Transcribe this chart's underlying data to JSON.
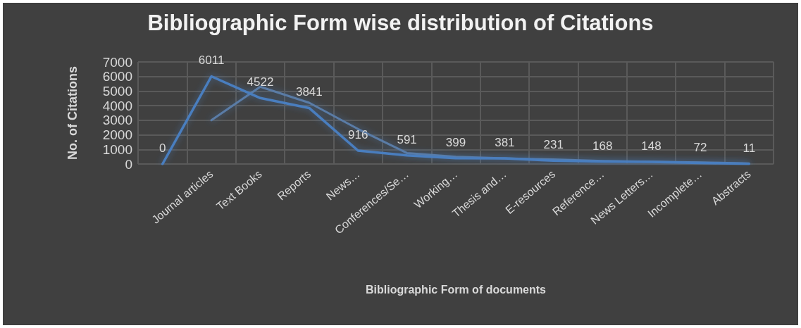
{
  "chart_data": {
    "type": "line",
    "title": "Bibliographic Form wise distribution of Citations",
    "xlabel": "Bibliographic Form of documents",
    "ylabel": "No. of Citations",
    "categories": [
      null,
      "Journal articles",
      "Text Books",
      "Reports",
      "News…",
      "Conferences/Se…",
      "Working…",
      "Thesis and…",
      "E-resources",
      "Reference…",
      "News Letters…",
      "Incomplete…",
      "Abstracts"
    ],
    "series": [
      {
        "color": "#4a7ebf",
        "values": [
          0,
          6011,
          4522,
          3841,
          916,
          591,
          399,
          381,
          231,
          168,
          148,
          72,
          11
        ],
        "value_labels": [
          "0",
          "6011",
          "4522",
          "3841",
          "916",
          "591",
          "399",
          "381",
          "231",
          "168",
          "148",
          "72",
          "11"
        ]
      },
      {
        "color": "#5a7ba6",
        "values": [
          null,
          3000,
          5300,
          4200,
          2400,
          750,
          500,
          390,
          310,
          200,
          160,
          110,
          40
        ]
      }
    ],
    "ylim": [
      0,
      7000
    ],
    "yticks": [
      0,
      1000,
      2000,
      3000,
      4000,
      5000,
      6000,
      7000
    ],
    "grid": true,
    "marker": "none",
    "line_style": "solid"
  }
}
